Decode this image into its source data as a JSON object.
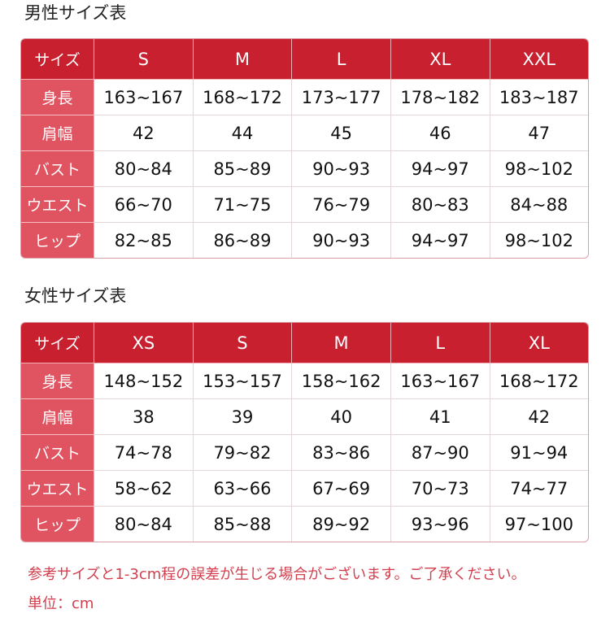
{
  "men": {
    "title": "男性サイズ表",
    "header_label": "サイズ",
    "sizes": [
      "S",
      "M",
      "L",
      "XL",
      "XXL"
    ],
    "rows": [
      {
        "label": "身長",
        "values": [
          "163~167",
          "168~172",
          "173~177",
          "178~182",
          "183~187"
        ]
      },
      {
        "label": "肩幅",
        "values": [
          "42",
          "44",
          "45",
          "46",
          "47"
        ]
      },
      {
        "label": "バスト",
        "values": [
          "80~84",
          "85~89",
          "90~93",
          "94~97",
          "98~102"
        ]
      },
      {
        "label": "ウエスト",
        "values": [
          "66~70",
          "71~75",
          "76~79",
          "80~83",
          "84~88"
        ]
      },
      {
        "label": "ヒップ",
        "values": [
          "82~85",
          "86~89",
          "90~93",
          "94~97",
          "98~102"
        ]
      }
    ]
  },
  "women": {
    "title": "女性サイズ表",
    "header_label": "サイズ",
    "sizes": [
      "XS",
      "S",
      "M",
      "L",
      "XL"
    ],
    "rows": [
      {
        "label": "身長",
        "values": [
          "148~152",
          "153~157",
          "158~162",
          "163~167",
          "168~172"
        ]
      },
      {
        "label": "肩幅",
        "values": [
          "38",
          "39",
          "40",
          "41",
          "42"
        ]
      },
      {
        "label": "バスト",
        "values": [
          "74~78",
          "79~82",
          "83~86",
          "87~90",
          "91~94"
        ]
      },
      {
        "label": "ウエスト",
        "values": [
          "58~62",
          "63~66",
          "67~69",
          "70~73",
          "74~77"
        ]
      },
      {
        "label": "ヒップ",
        "values": [
          "80~84",
          "85~88",
          "89~92",
          "93~96",
          "97~100"
        ]
      }
    ]
  },
  "notes": {
    "disclaimer": "参考サイズと1-3cm程の誤差が生じる場合がございます。ご了承ください。",
    "unit": "単位：cm"
  },
  "colors": {
    "header": "#c8202f",
    "label_column": "#df5460",
    "note_text": "#d2404f"
  }
}
